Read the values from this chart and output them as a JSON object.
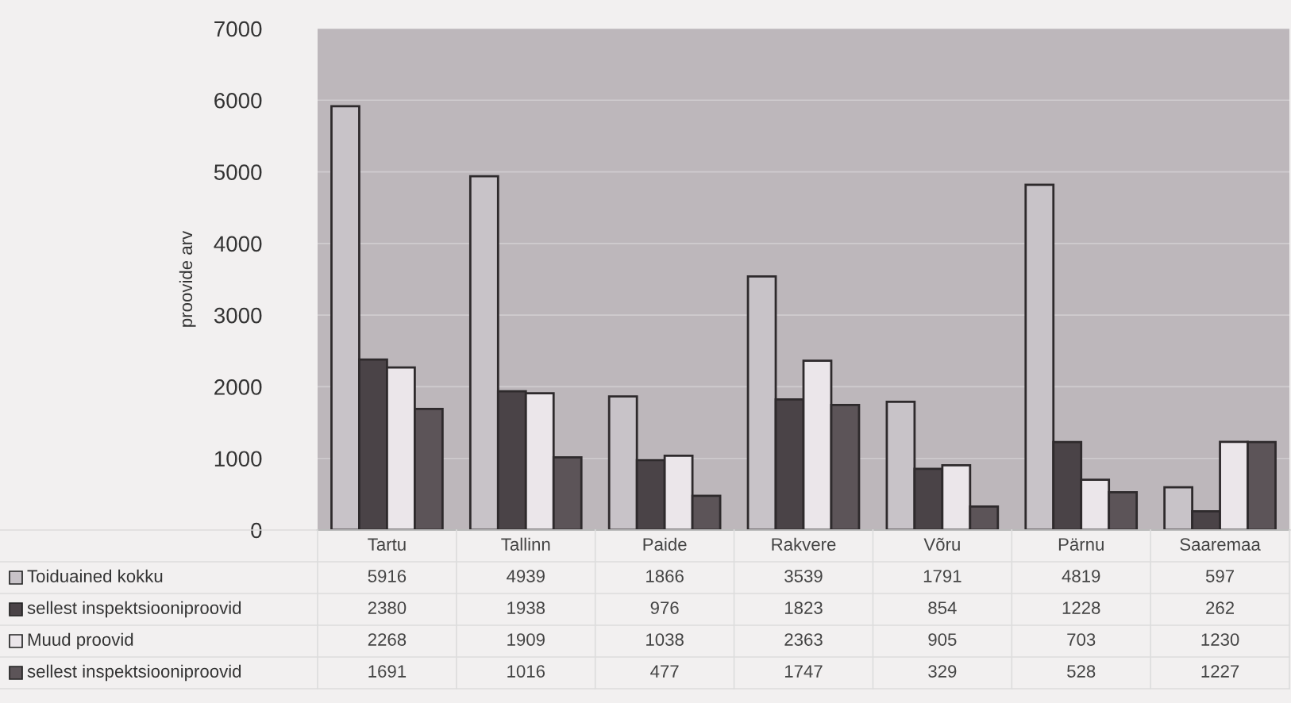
{
  "chart_data": {
    "type": "bar",
    "ylabel": "proovide arv",
    "categories": [
      "Tartu",
      "Tallinn",
      "Paide",
      "Rakvere",
      "Võru",
      "Pärnu",
      "Saaremaa"
    ],
    "series": [
      {
        "name": "Toiduained kokku",
        "color": "#c8c3c8",
        "values": [
          5916,
          4939,
          1866,
          3539,
          1791,
          4819,
          597
        ]
      },
      {
        "name": "sellest inspektsiooniproovid",
        "color": "#4a4347",
        "values": [
          2380,
          1938,
          976,
          1823,
          854,
          1228,
          262
        ]
      },
      {
        "name": "Muud proovid",
        "color": "#ebe6ea",
        "values": [
          2268,
          1909,
          1038,
          2363,
          905,
          703,
          1230
        ]
      },
      {
        "name": "sellest inspektsiooniproovid",
        "color": "#5c5458",
        "values": [
          1691,
          1016,
          477,
          1747,
          329,
          528,
          1227
        ]
      }
    ],
    "ylim": [
      0,
      7000
    ],
    "yticks": [
      0,
      1000,
      2000,
      3000,
      4000,
      5000,
      6000,
      7000
    ],
    "grid": "y",
    "data_labels": true,
    "legend": "bottom"
  }
}
